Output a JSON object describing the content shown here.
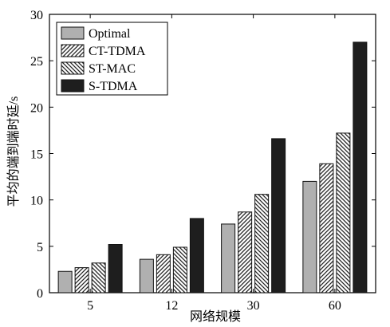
{
  "chart_data": {
    "type": "bar",
    "categories": [
      "5",
      "12",
      "30",
      "60"
    ],
    "series": [
      {
        "name": "Optimal",
        "values": [
          2.3,
          3.6,
          7.4,
          12.0
        ],
        "style": "light-gray"
      },
      {
        "name": "CT-TDMA",
        "values": [
          2.7,
          4.1,
          8.7,
          13.9
        ],
        "style": "hatch-forward"
      },
      {
        "name": "ST-MAC",
        "values": [
          3.2,
          4.9,
          10.6,
          17.2
        ],
        "style": "hatch-backward"
      },
      {
        "name": "S-TDMA",
        "values": [
          5.2,
          8.0,
          16.6,
          27.0
        ],
        "style": "dark"
      }
    ],
    "xlabel": "网络规模",
    "ylabel": "平均的端到端时延/s",
    "ylim": [
      0,
      30
    ],
    "yticks": [
      0,
      5,
      10,
      15,
      20,
      25,
      30
    ],
    "grid": false,
    "legend_position": "top-left",
    "colors": {
      "light": "#b0b0b0",
      "dark": "#1e1e1e",
      "hatch": "#222222"
    }
  }
}
